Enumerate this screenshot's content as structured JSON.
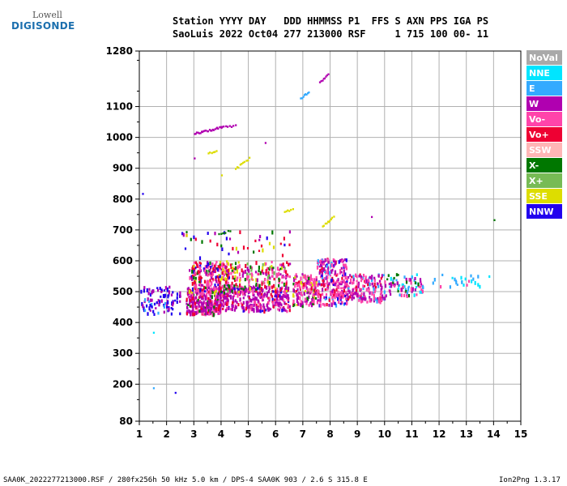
{
  "logo": {
    "top": "Lowell",
    "bottom": "DIGISONDE"
  },
  "header": {
    "line1": "Station YYYY DAY   DDD HHMMSS P1  FFS S AXN PPS IGA PS",
    "line2": "SaoLuis 2022 Oct04 277 213000 RSF     1 715 100 00- 11"
  },
  "footer": {
    "left": "SAA0K_2022277213000.RSF / 280fx256h 50 kHz 5.0 km / DPS-4 SAA0K 903 / 2.6 S 315.8 E",
    "right": "Ion2Png 1.3.17"
  },
  "legend": [
    {
      "label": "NoVal",
      "color": "#a9a9a9"
    },
    {
      "label": "NNE",
      "color": "#00e5ff"
    },
    {
      "label": "E",
      "color": "#33aaff"
    },
    {
      "label": "W",
      "color": "#b000b0"
    },
    {
      "label": "Vo-",
      "color": "#ff44aa"
    },
    {
      "label": "Vo+",
      "color": "#ee0033"
    },
    {
      "label": "SSW",
      "color": "#ffb6b6"
    },
    {
      "label": "X-",
      "color": "#007700"
    },
    {
      "label": "X+",
      "color": "#77bb55"
    },
    {
      "label": "SSE",
      "color": "#dddd00"
    },
    {
      "label": "NNW",
      "color": "#2200ee"
    }
  ],
  "chart_data": {
    "type": "scatter",
    "xlim": [
      1,
      15
    ],
    "ylim": [
      80,
      1280
    ],
    "x_ticks": [
      1,
      2,
      3,
      4,
      5,
      6,
      7,
      8,
      9,
      10,
      11,
      12,
      13,
      14,
      15
    ],
    "y_ticks": [
      80,
      200,
      300,
      400,
      500,
      600,
      700,
      800,
      900,
      1000,
      1100,
      1280
    ],
    "grid": true,
    "legend_position": "right",
    "clouds": [
      {
        "x": [
          1.0,
          2.5
        ],
        "y": [
          430,
          520
        ],
        "weights": {
          "NNW": 5,
          "W": 2,
          "E": 1
        },
        "density": 90
      },
      {
        "x": [
          2.7,
          4.0
        ],
        "y": [
          430,
          520
        ],
        "weights": {
          "W": 5,
          "Vo-": 2,
          "X-": 1,
          "Vo+": 1
        },
        "density": 320
      },
      {
        "x": [
          2.8,
          4.3
        ],
        "y": [
          500,
          600
        ],
        "weights": {
          "Vo-": 3,
          "Vo+": 2,
          "X-": 1,
          "SSE": 1,
          "W": 1,
          "NNW": 1
        },
        "density": 200
      },
      {
        "x": [
          4.0,
          6.5
        ],
        "y": [
          440,
          520
        ],
        "weights": {
          "W": 5,
          "Vo-": 2,
          "NNW": 1,
          "Vo+": 1
        },
        "density": 320
      },
      {
        "x": [
          4.0,
          6.5
        ],
        "y": [
          500,
          600
        ],
        "weights": {
          "Vo-": 3,
          "Vo+": 2,
          "X-": 2,
          "W": 2,
          "SSE": 1,
          "X+": 1
        },
        "density": 220
      },
      {
        "x": [
          6.6,
          7.5
        ],
        "y": [
          460,
          560
        ],
        "weights": {
          "Vo-": 4,
          "W": 2,
          "Vo+": 1,
          "SSE": 1,
          "X-": 1
        },
        "density": 160
      },
      {
        "x": [
          7.5,
          8.6
        ],
        "y": [
          460,
          610
        ],
        "weights": {
          "Vo-": 4,
          "W": 3,
          "Vo+": 1,
          "E": 1,
          "NNW": 1
        },
        "density": 260
      },
      {
        "x": [
          8.6,
          10.0
        ],
        "y": [
          470,
          560
        ],
        "weights": {
          "Vo-": 3,
          "W": 3,
          "E": 1,
          "Vo+": 1
        },
        "density": 170
      },
      {
        "x": [
          10.0,
          11.4
        ],
        "y": [
          490,
          560
        ],
        "weights": {
          "W": 2,
          "Vo-": 2,
          "E": 2,
          "NNE": 1,
          "X-": 1
        },
        "density": 90
      },
      {
        "x": [
          11.5,
          14.0
        ],
        "y": [
          520,
          560
        ],
        "weights": {
          "NNE": 3,
          "E": 3,
          "Vo-": 1
        },
        "density": 25
      },
      {
        "x": [
          2.5,
          6.5
        ],
        "y": [
          600,
          700
        ],
        "weights": {
          "Vo+": 2,
          "X-": 2,
          "NNW": 1,
          "SSE": 1,
          "W": 1
        },
        "density": 45
      }
    ],
    "traces": [
      {
        "x": [
          3.0,
          4.0
        ],
        "y": [
          1015,
          1035
        ],
        "color": "W",
        "count": 25
      },
      {
        "x": [
          4.0,
          4.5
        ],
        "y": [
          1035,
          1040
        ],
        "color": "W",
        "count": 8
      },
      {
        "x": [
          6.9,
          7.2
        ],
        "y": [
          1130,
          1150
        ],
        "color": "E",
        "count": 8
      },
      {
        "x": [
          7.6,
          7.9
        ],
        "y": [
          1180,
          1210
        ],
        "color": "W",
        "count": 8
      },
      {
        "x": [
          4.5,
          5.0
        ],
        "y": [
          900,
          935
        ],
        "color": "SSE",
        "count": 10
      },
      {
        "x": [
          7.7,
          8.1
        ],
        "y": [
          715,
          745
        ],
        "color": "SSE",
        "count": 10
      },
      {
        "x": [
          3.5,
          3.8
        ],
        "y": [
          950,
          960
        ],
        "color": "SSE",
        "count": 6
      },
      {
        "x": [
          6.3,
          6.6
        ],
        "y": [
          760,
          770
        ],
        "color": "SSE",
        "count": 6
      },
      {
        "x": [
          3.9,
          4.3
        ],
        "y": [
          690,
          700
        ],
        "color": "X-",
        "count": 6
      }
    ],
    "points": [
      {
        "x": 1.1,
        "y": 820,
        "color": "NNW"
      },
      {
        "x": 1.5,
        "y": 190,
        "color": "E"
      },
      {
        "x": 2.3,
        "y": 175,
        "color": "NNW"
      },
      {
        "x": 14.0,
        "y": 735,
        "color": "X-"
      },
      {
        "x": 9.5,
        "y": 745,
        "color": "W"
      },
      {
        "x": 3.0,
        "y": 935,
        "color": "W"
      },
      {
        "x": 5.6,
        "y": 985,
        "color": "W"
      },
      {
        "x": 4.0,
        "y": 880,
        "color": "SSE"
      },
      {
        "x": 1.5,
        "y": 370,
        "color": "NNE"
      }
    ]
  }
}
